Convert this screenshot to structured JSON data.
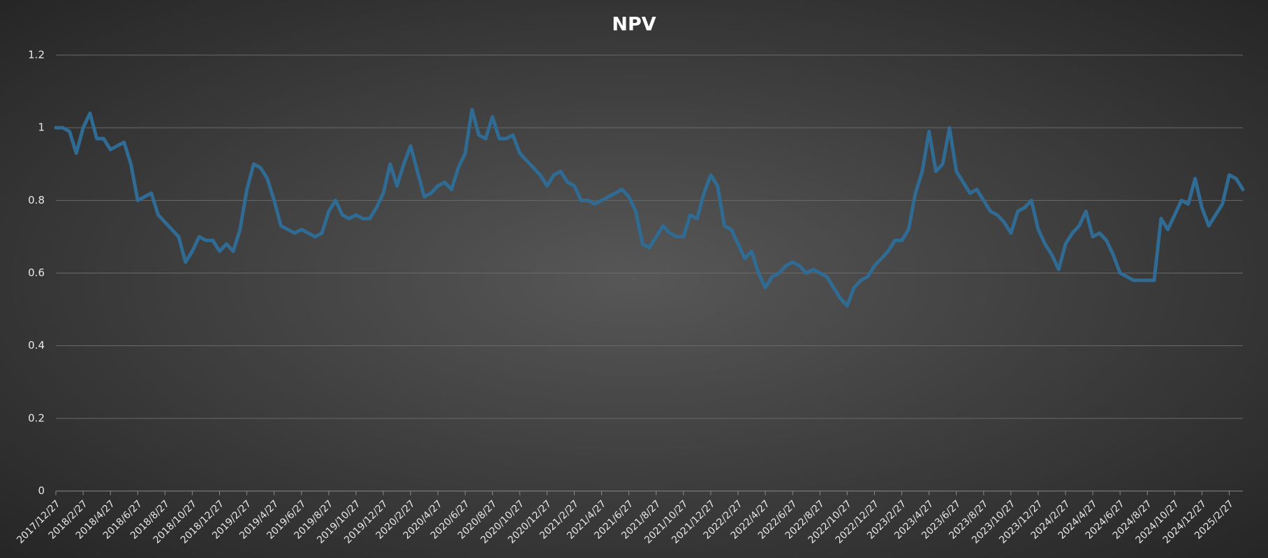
{
  "chart_data": {
    "type": "line",
    "title": "NPV",
    "categories": [
      "2017/12/27",
      null,
      null,
      null,
      "2018/2/27",
      null,
      null,
      null,
      "2018/4/27",
      null,
      null,
      null,
      "2018/6/27",
      null,
      null,
      null,
      "2018/8/27",
      null,
      null,
      null,
      "2018/10/27",
      null,
      null,
      null,
      "2018/12/27",
      null,
      null,
      null,
      "2019/2/27",
      null,
      null,
      null,
      "2019/4/27",
      null,
      null,
      null,
      "2019/6/27",
      null,
      null,
      null,
      "2019/8/27",
      null,
      null,
      null,
      "2019/10/27",
      null,
      null,
      null,
      "2019/12/27",
      null,
      null,
      null,
      "2020/2/27",
      null,
      null,
      null,
      "2020/4/27",
      null,
      null,
      null,
      "2020/6/27",
      null,
      null,
      null,
      "2020/8/27",
      null,
      null,
      null,
      "2020/10/27",
      null,
      null,
      null,
      "2020/12/27",
      null,
      null,
      null,
      "2021/2/27",
      null,
      null,
      null,
      "2021/4/27",
      null,
      null,
      null,
      "2021/6/27",
      null,
      null,
      null,
      "2021/8/27",
      null,
      null,
      null,
      "2021/10/27",
      null,
      null,
      null,
      "2021/12/27",
      null,
      null,
      null,
      "2022/2/27",
      null,
      null,
      null,
      "2022/4/27",
      null,
      null,
      null,
      "2022/6/27",
      null,
      null,
      null,
      "2022/8/27",
      null,
      null,
      null,
      "2022/10/27",
      null,
      null,
      null,
      "2022/12/27",
      null,
      null,
      null,
      "2023/2/27",
      null,
      null,
      null,
      "2023/4/27",
      null,
      null,
      null,
      "2023/6/27",
      null,
      null,
      null,
      "2023/8/27",
      null,
      null,
      null,
      "2023/10/27",
      null,
      null,
      null,
      "2023/12/27",
      null,
      null,
      null,
      "2024/2/27",
      null,
      null,
      null,
      "2024/4/27",
      null,
      null,
      null,
      "2024/6/27",
      null,
      null,
      null,
      "2024/8/27",
      null,
      null,
      null,
      "2024/10/27",
      null,
      null,
      null,
      "2024/12/27",
      null,
      null,
      null,
      "2025/2/27",
      null,
      null
    ],
    "values": [
      1.0,
      1.0,
      0.99,
      0.93,
      1.0,
      1.04,
      0.97,
      0.97,
      0.94,
      0.95,
      0.96,
      0.9,
      0.8,
      0.81,
      0.82,
      0.76,
      0.74,
      0.72,
      0.7,
      0.63,
      0.66,
      0.7,
      0.69,
      0.69,
      0.66,
      0.68,
      0.66,
      0.72,
      0.83,
      0.9,
      0.89,
      0.86,
      0.8,
      0.73,
      0.72,
      0.71,
      0.72,
      0.71,
      0.7,
      0.71,
      0.77,
      0.8,
      0.76,
      0.75,
      0.76,
      0.75,
      0.75,
      0.78,
      0.82,
      0.9,
      0.84,
      0.9,
      0.95,
      0.88,
      0.81,
      0.82,
      0.84,
      0.85,
      0.83,
      0.89,
      0.93,
      1.05,
      0.98,
      0.97,
      1.03,
      0.97,
      0.97,
      0.98,
      0.93,
      0.91,
      0.89,
      0.87,
      0.84,
      0.87,
      0.88,
      0.85,
      0.84,
      0.8,
      0.8,
      0.79,
      0.8,
      0.81,
      0.82,
      0.83,
      0.81,
      0.77,
      0.68,
      0.67,
      0.7,
      0.73,
      0.71,
      0.7,
      0.7,
      0.76,
      0.75,
      0.82,
      0.87,
      0.84,
      0.73,
      0.72,
      0.68,
      0.64,
      0.66,
      0.6,
      0.56,
      0.59,
      0.6,
      0.62,
      0.63,
      0.62,
      0.6,
      0.61,
      0.6,
      0.59,
      0.56,
      0.53,
      0.51,
      0.56,
      0.58,
      0.59,
      0.62,
      0.64,
      0.66,
      0.69,
      0.69,
      0.72,
      0.82,
      0.88,
      0.99,
      0.88,
      0.9,
      1.0,
      0.88,
      0.85,
      0.82,
      0.83,
      0.8,
      0.77,
      0.76,
      0.74,
      0.71,
      0.77,
      0.78,
      0.8,
      0.72,
      0.68,
      0.65,
      0.61,
      0.68,
      0.71,
      0.73,
      0.77,
      0.7,
      0.71,
      0.69,
      0.65,
      0.6,
      0.59,
      0.58,
      0.58,
      0.58,
      0.58,
      0.75,
      0.72,
      0.76,
      0.8,
      0.79,
      0.86,
      0.78,
      0.73,
      0.76,
      0.79,
      0.87,
      0.86,
      0.83
    ],
    "color": "#2f6b93",
    "ylim": [
      0,
      1.2
    ],
    "yticks": [
      0,
      0.2,
      0.4,
      0.6,
      0.8,
      1,
      1.2
    ],
    "grid": true
  }
}
